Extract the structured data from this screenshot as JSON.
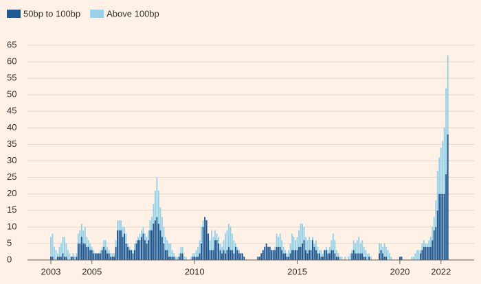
{
  "chart_data": {
    "type": "stacked-bar",
    "categories": [
      "2003",
      null,
      null,
      null,
      null,
      null,
      null,
      null,
      null,
      null,
      null,
      null,
      null,
      null,
      null,
      null,
      null,
      null,
      null,
      null,
      null,
      null,
      null,
      null,
      "2005",
      null,
      null,
      null,
      null,
      null,
      null,
      null,
      null,
      null,
      null,
      null,
      null,
      null,
      null,
      null,
      null,
      null,
      null,
      null,
      null,
      null,
      null,
      null,
      null,
      null,
      null,
      null,
      null,
      null,
      null,
      null,
      null,
      null,
      null,
      null,
      null,
      null,
      null,
      null,
      null,
      null,
      null,
      null,
      null,
      null,
      null,
      null,
      null,
      null,
      null,
      null,
      null,
      null,
      null,
      null,
      null,
      null,
      null,
      null,
      "2010",
      null,
      null,
      null,
      null,
      null,
      null,
      null,
      null,
      null,
      null,
      null,
      null,
      null,
      null,
      null,
      null,
      null,
      null,
      null,
      null,
      null,
      null,
      null,
      null,
      null,
      null,
      null,
      null,
      null,
      null,
      null,
      null,
      null,
      null,
      null,
      null,
      null,
      null,
      null,
      null,
      null,
      null,
      null,
      null,
      null,
      null,
      null,
      null,
      null,
      null,
      null,
      null,
      null,
      null,
      null,
      null,
      null,
      null,
      null,
      "2015",
      null,
      null,
      null,
      null,
      null,
      null,
      null,
      null,
      null,
      null,
      null,
      null,
      null,
      null,
      null,
      null,
      null,
      null,
      null,
      null,
      null,
      null,
      null,
      null,
      null,
      null,
      null,
      null,
      null,
      null,
      null,
      null,
      null,
      null,
      null,
      null,
      null,
      null,
      null,
      null,
      null,
      null,
      null,
      null,
      null,
      null,
      null,
      null,
      null,
      null,
      null,
      null,
      null,
      null,
      null,
      null,
      null,
      null,
      null,
      "2020",
      null,
      null,
      null,
      null,
      null,
      null,
      null,
      null,
      null,
      null,
      null,
      null,
      null,
      null,
      null,
      null,
      null,
      null,
      null,
      null,
      null,
      null,
      null,
      "2022",
      null,
      null,
      null,
      null
    ],
    "series": [
      {
        "name": "50bp to 100bp",
        "color": "#1d5a94",
        "values": [
          1,
          1,
          0,
          0,
          1,
          1,
          1,
          2,
          1,
          1,
          0,
          0,
          1,
          1,
          0,
          1,
          5,
          5,
          7,
          5,
          5,
          4,
          4,
          3,
          3,
          2,
          2,
          2,
          2,
          2,
          3,
          4,
          3,
          2,
          2,
          1,
          1,
          1,
          4,
          9,
          9,
          9,
          7,
          8,
          5,
          4,
          3,
          3,
          2,
          3,
          5,
          6,
          6,
          7,
          8,
          6,
          5,
          6,
          9,
          9,
          11,
          12,
          13,
          11,
          9,
          7,
          5,
          3,
          3,
          1,
          1,
          1,
          1,
          0,
          0,
          1,
          2,
          2,
          0,
          0,
          0,
          0,
          0,
          1,
          1,
          1,
          1,
          2,
          5,
          10,
          13,
          12,
          8,
          3,
          3,
          3,
          6,
          6,
          5,
          3,
          2,
          3,
          2,
          3,
          4,
          3,
          3,
          2,
          4,
          3,
          2,
          2,
          2,
          1,
          0,
          0,
          0,
          0,
          0,
          0,
          0,
          1,
          1,
          2,
          3,
          4,
          5,
          4,
          4,
          3,
          3,
          3,
          4,
          4,
          4,
          3,
          2,
          2,
          1,
          1,
          2,
          3,
          3,
          3,
          3,
          4,
          4,
          5,
          6,
          3,
          2,
          3,
          3,
          6,
          4,
          3,
          2,
          2,
          1,
          1,
          3,
          3,
          2,
          2,
          3,
          3,
          2,
          1,
          1,
          0,
          0,
          0,
          0,
          0,
          0,
          0,
          2,
          3,
          2,
          2,
          2,
          2,
          2,
          1,
          1,
          0,
          1,
          0,
          0,
          0,
          0,
          0,
          2,
          3,
          2,
          1,
          1,
          0,
          0,
          0,
          0,
          0,
          0,
          0,
          1,
          1,
          0,
          0,
          0,
          0,
          0,
          0,
          0,
          0,
          0,
          0,
          2,
          3,
          4,
          4,
          4,
          4,
          4,
          6,
          9,
          10,
          15,
          20,
          20,
          20,
          20,
          26,
          38
        ]
      },
      {
        "name": "Above 100bp",
        "color": "#96d3e8",
        "values": [
          6,
          7,
          4,
          3,
          1,
          3,
          4,
          5,
          6,
          4,
          3,
          2,
          0,
          1,
          1,
          1,
          3,
          4,
          4,
          4,
          5,
          3,
          2,
          2,
          1,
          1,
          0,
          0,
          0,
          1,
          1,
          2,
          3,
          2,
          1,
          1,
          1,
          1,
          2,
          3,
          3,
          3,
          3,
          2,
          3,
          1,
          1,
          0,
          1,
          2,
          1,
          1,
          2,
          2,
          2,
          2,
          2,
          3,
          3,
          4,
          6,
          9,
          12,
          10,
          7,
          6,
          5,
          4,
          3,
          4,
          4,
          2,
          1,
          1,
          1,
          1,
          2,
          2,
          1,
          1,
          0,
          0,
          1,
          1,
          1,
          2,
          3,
          4,
          5,
          2,
          0,
          0,
          0,
          3,
          6,
          4,
          3,
          2,
          2,
          2,
          2,
          3,
          6,
          6,
          7,
          7,
          5,
          4,
          1,
          1,
          1,
          0,
          0,
          0,
          0,
          0,
          0,
          0,
          0,
          0,
          0,
          0,
          0,
          0,
          0,
          0,
          0,
          0,
          0,
          0,
          0,
          1,
          4,
          3,
          4,
          3,
          2,
          1,
          1,
          2,
          3,
          5,
          4,
          3,
          4,
          5,
          7,
          6,
          4,
          4,
          4,
          4,
          3,
          1,
          1,
          3,
          2,
          1,
          2,
          1,
          0,
          1,
          1,
          2,
          3,
          5,
          4,
          2,
          1,
          1,
          1,
          0,
          1,
          0,
          1,
          2,
          1,
          3,
          3,
          4,
          5,
          3,
          4,
          3,
          2,
          2,
          1,
          1,
          0,
          0,
          0,
          0,
          3,
          2,
          2,
          4,
          3,
          3,
          2,
          1,
          0,
          0,
          0,
          0,
          0,
          0,
          0,
          0,
          0,
          0,
          0,
          1,
          1,
          2,
          3,
          3,
          1,
          2,
          2,
          1,
          1,
          2,
          3,
          4,
          4,
          8,
          12,
          11,
          14,
          16,
          20,
          26,
          24
        ]
      }
    ],
    "ylim": [
      0,
      65
    ],
    "yticks": [
      0,
      5,
      10,
      15,
      20,
      25,
      30,
      35,
      40,
      45,
      50,
      55,
      60,
      65
    ],
    "grid": true
  }
}
